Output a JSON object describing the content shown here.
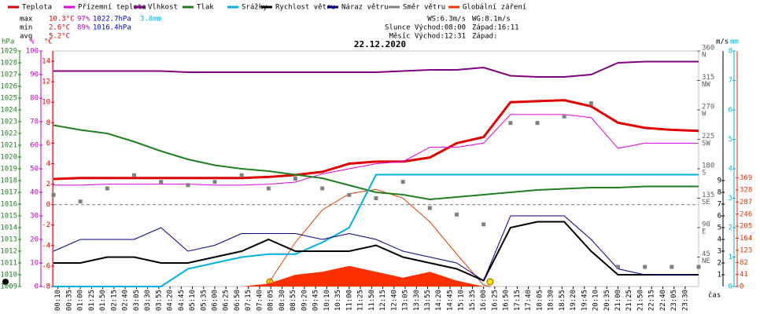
{
  "stats": [
    {
      "label": "max",
      "temp": "10.3°C",
      "hum": "97%",
      "press": "1022.7hPa",
      "rain": "3.8mm"
    },
    {
      "label": "min",
      "temp": "2.6°C",
      "hum": "89%",
      "press": "1016.4hPa"
    },
    {
      "label": "avg",
      "temp": "5.2°C"
    }
  ],
  "info": [
    [
      "WS:6.3m/s",
      "WG:8.1m/s"
    ],
    [
      "Slunce Východ:08:00",
      "Západ:16:11"
    ],
    [
      "Měsíc Východ:12:31",
      "Západ:"
    ]
  ],
  "chart_data": {
    "type": "line",
    "title": "22.12.2020",
    "xlabel": "čas",
    "xlim": [
      0,
      1440
    ],
    "xticks": [
      {
        "value": 10,
        "label": "00:10"
      },
      {
        "value": 35,
        "label": "00:35"
      },
      {
        "value": 60,
        "label": "01:00"
      },
      {
        "value": 85,
        "label": "01:25"
      },
      {
        "value": 110,
        "label": "01:50"
      },
      {
        "value": 135,
        "label": "02:15"
      },
      {
        "value": 160,
        "label": "02:40"
      },
      {
        "value": 185,
        "label": "03:05"
      },
      {
        "value": 210,
        "label": "03:30"
      },
      {
        "value": 235,
        "label": "03:55"
      },
      {
        "value": 260,
        "label": "04:20"
      },
      {
        "value": 285,
        "label": "04:45"
      },
      {
        "value": 310,
        "label": "05:10"
      },
      {
        "value": 335,
        "label": "05:35"
      },
      {
        "value": 360,
        "label": "06:00"
      },
      {
        "value": 385,
        "label": "06:25"
      },
      {
        "value": 410,
        "label": "06:50"
      },
      {
        "value": 435,
        "label": "07:15"
      },
      {
        "value": 460,
        "label": "07:40"
      },
      {
        "value": 485,
        "label": "08:05"
      },
      {
        "value": 510,
        "label": "08:30"
      },
      {
        "value": 535,
        "label": "08:55"
      },
      {
        "value": 560,
        "label": "09:20"
      },
      {
        "value": 585,
        "label": "09:45"
      },
      {
        "value": 610,
        "label": "10:10"
      },
      {
        "value": 635,
        "label": "10:35"
      },
      {
        "value": 660,
        "label": "11:00"
      },
      {
        "value": 685,
        "label": "11:25"
      },
      {
        "value": 710,
        "label": "11:50"
      },
      {
        "value": 735,
        "label": "12:15"
      },
      {
        "value": 760,
        "label": "12:40"
      },
      {
        "value": 785,
        "label": "13:05"
      },
      {
        "value": 810,
        "label": "13:30"
      },
      {
        "value": 835,
        "label": "13:55"
      },
      {
        "value": 860,
        "label": "14:20"
      },
      {
        "value": 885,
        "label": "14:45"
      },
      {
        "value": 910,
        "label": "15:10"
      },
      {
        "value": 935,
        "label": "15:35"
      },
      {
        "value": 960,
        "label": "16:00"
      },
      {
        "value": 985,
        "label": "16:25"
      },
      {
        "value": 1010,
        "label": "16:50"
      },
      {
        "value": 1035,
        "label": "17:15"
      },
      {
        "value": 1060,
        "label": "17:40"
      },
      {
        "value": 1085,
        "label": "18:05"
      },
      {
        "value": 1110,
        "label": "18:30"
      },
      {
        "value": 1135,
        "label": "18:55"
      },
      {
        "value": 1160,
        "label": "19:20"
      },
      {
        "value": 1185,
        "label": "19:45"
      },
      {
        "value": 1210,
        "label": "20:10"
      },
      {
        "value": 1235,
        "label": "20:35"
      },
      {
        "value": 1260,
        "label": "21:00"
      },
      {
        "value": 1285,
        "label": "21:25"
      },
      {
        "value": 1310,
        "label": "21:50"
      },
      {
        "value": 1335,
        "label": "22:15"
      },
      {
        "value": 1360,
        "label": "22:40"
      },
      {
        "value": 1385,
        "label": "23:05"
      },
      {
        "value": 1410,
        "label": "23:30"
      }
    ],
    "axes": {
      "press": {
        "label": "hPa",
        "color": "#208020",
        "lim": [
          1009,
          1029
        ],
        "ticks": [
          1009,
          1010,
          1011,
          1012,
          1013,
          1014,
          1015,
          1016,
          1017,
          1018,
          1019,
          1020,
          1021,
          1022,
          1023,
          1024,
          1025,
          1026,
          1027,
          1028,
          1029
        ]
      },
      "hum": {
        "label": "%",
        "color": "#c000c0",
        "lim": [
          0,
          100
        ],
        "ticks": [
          0,
          10,
          20,
          30,
          40,
          50,
          60,
          70,
          80,
          90,
          100
        ]
      },
      "temp": {
        "label": "°C",
        "color": "#e00000",
        "lim": [
          -8,
          15
        ],
        "ticks": [
          -8,
          -6,
          -4,
          -2,
          0,
          2,
          4,
          6,
          8,
          10,
          12,
          14
        ]
      },
      "dir": {
        "color": "#606060",
        "lim": [
          0,
          360
        ],
        "ticks": [
          45,
          90,
          135,
          180,
          225,
          270,
          315,
          360
        ],
        "compass": [
          "NE",
          "E",
          "SE",
          "S",
          "SW",
          "W",
          "NW",
          "N"
        ]
      },
      "wind": {
        "label": "m/s",
        "color": "#000000",
        "lim": [
          0,
          20
        ],
        "ticks": [
          1,
          2,
          3,
          4,
          5,
          6,
          7,
          8,
          9
        ]
      },
      "rain": {
        "label": "mm",
        "color": "#00b0e0",
        "lim": [
          0,
          8
        ],
        "ticks": [
          0,
          1,
          2,
          3,
          4,
          5,
          6,
          7,
          8
        ]
      },
      "rad": {
        "color": "#e03000",
        "lim": [
          0,
          800
        ],
        "ticks": [
          0,
          41,
          82,
          123,
          164,
          205,
          246,
          287,
          328,
          369
        ]
      }
    },
    "zero_line": 0,
    "x": [
      0,
      60,
      120,
      180,
      240,
      300,
      360,
      420,
      480,
      540,
      600,
      660,
      720,
      780,
      840,
      900,
      960,
      1020,
      1080,
      1140,
      1200,
      1260,
      1320,
      1380,
      1440
    ],
    "series": [
      {
        "name": "Teplota",
        "color": "#e00000",
        "axis": "temp",
        "line_width": 3,
        "values": [
          2.5,
          2.6,
          2.6,
          2.6,
          2.6,
          2.6,
          2.6,
          2.6,
          2.7,
          2.9,
          3.2,
          4.0,
          4.2,
          4.2,
          4.6,
          6.0,
          6.6,
          10.0,
          10.1,
          10.2,
          9.6,
          8.0,
          7.5,
          7.3,
          7.2
        ]
      },
      {
        "name": "Přízemní teplota",
        "color": "#e000e0",
        "axis": "temp",
        "line_width": 1,
        "values": [
          1.9,
          1.9,
          2.0,
          2.0,
          2.0,
          2.0,
          1.9,
          1.9,
          2.0,
          2.2,
          3.0,
          3.5,
          4.0,
          4.2,
          5.6,
          5.6,
          6.0,
          8.8,
          8.8,
          8.8,
          8.5,
          5.5,
          6.0,
          6.0,
          6.0
        ]
      },
      {
        "name": "Vlhkost",
        "color": "#800080",
        "axis": "hum",
        "line_width": 2,
        "values": [
          91.5,
          91.5,
          91.5,
          91.5,
          91.5,
          91,
          91,
          91,
          91,
          91,
          91,
          91,
          91,
          91.5,
          92,
          92,
          93,
          89.5,
          89,
          89,
          90,
          95,
          95.5,
          95.5,
          95.5
        ]
      },
      {
        "name": "Tlak",
        "color": "#208020",
        "axis": "press",
        "line_width": 2,
        "values": [
          1022.7,
          1022.3,
          1022,
          1021.3,
          1020.5,
          1019.8,
          1019.3,
          1019,
          1018.8,
          1018.5,
          1018.2,
          1017.6,
          1017,
          1016.8,
          1016.4,
          1016.6,
          1016.8,
          1017,
          1017.2,
          1017.3,
          1017.4,
          1017.4,
          1017.5,
          1017.5,
          1017.5
        ]
      },
      {
        "name": "Srážky",
        "color": "#00b0e0",
        "axis": "rain",
        "line_width": 2,
        "values": [
          0,
          0,
          0,
          0,
          0,
          0.6,
          0.8,
          1,
          1.1,
          1.1,
          1.5,
          2,
          3.8,
          3.8,
          3.8,
          3.8,
          3.8,
          3.8,
          3.8,
          3.8,
          3.8,
          3.8,
          3.8,
          3.8,
          3.8
        ]
      },
      {
        "name": "Rychlost větru",
        "color": "#000000",
        "axis": "wind",
        "line_width": 2,
        "values": [
          2,
          2,
          2.5,
          2.5,
          2,
          2,
          2.5,
          3,
          4,
          3,
          3,
          3,
          3.5,
          2.5,
          2,
          1.5,
          0.5,
          5,
          5.5,
          5.5,
          3,
          1,
          1,
          1,
          1
        ]
      },
      {
        "name": "Náraz větru",
        "color": "#000080",
        "axis": "wind",
        "line_width": 1,
        "values": [
          3,
          4,
          4,
          4,
          5,
          3,
          3.5,
          4.5,
          4.5,
          4.5,
          4,
          4.5,
          4,
          3,
          2.5,
          2,
          0.5,
          6,
          6,
          6,
          4,
          1.5,
          1,
          1,
          1
        ]
      },
      {
        "name": "Směr větru",
        "color": "#808080",
        "axis": "dir",
        "kind": "scatter",
        "values": [
          140,
          130,
          150,
          170,
          160,
          155,
          160,
          170,
          150,
          165,
          150,
          140,
          135,
          160,
          120,
          110,
          95,
          250,
          250,
          260,
          280,
          30,
          30,
          30,
          30
        ]
      },
      {
        "name": "Globální záření",
        "color": "#ff3000",
        "axis": "rad",
        "kind": "area",
        "values": [
          0,
          0,
          0,
          0,
          0,
          0,
          0,
          0,
          10,
          40,
          50,
          70,
          50,
          30,
          50,
          20,
          0,
          0,
          0,
          0,
          0,
          0,
          0,
          0,
          0
        ]
      }
    ],
    "clear_sky": {
      "color": "#e04000",
      "axis": "rad",
      "x": [
        475,
        540,
        600,
        660,
        720,
        780,
        840,
        900,
        960,
        975
      ],
      "values": [
        0,
        150,
        260,
        315,
        330,
        300,
        220,
        110,
        5,
        0
      ]
    }
  }
}
